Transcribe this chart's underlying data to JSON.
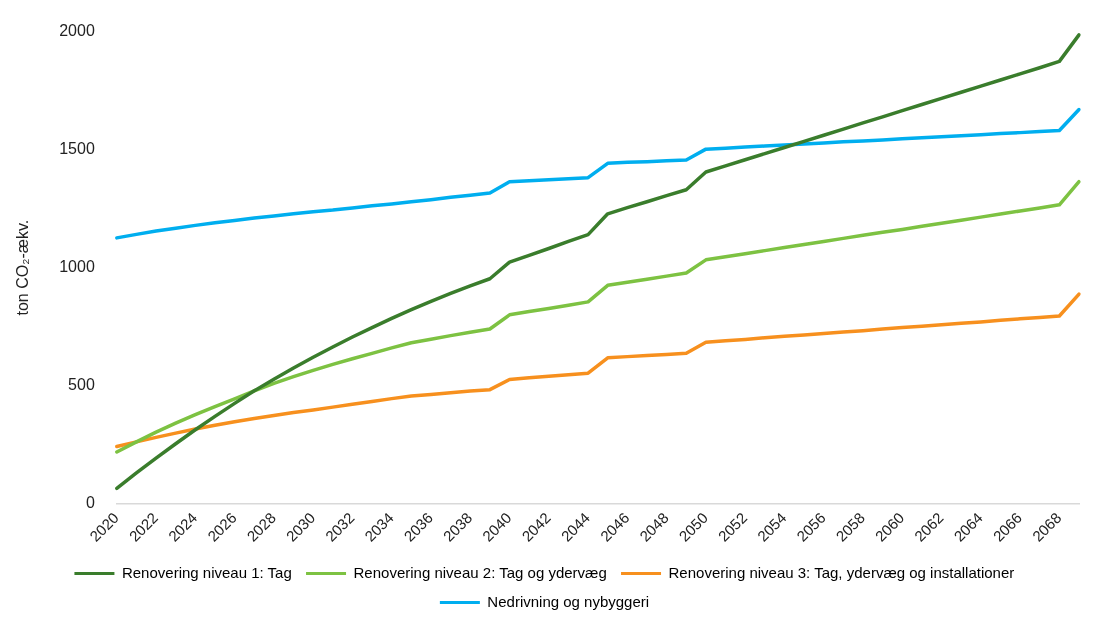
{
  "chart_data": {
    "type": "line",
    "ylabel": "ton CO₂-ækv.",
    "categories": [
      "2020",
      null,
      "2022",
      null,
      "2024",
      null,
      "2026",
      null,
      "2028",
      null,
      "2030",
      null,
      "2032",
      null,
      "2034",
      null,
      "2036",
      null,
      "2038",
      null,
      "2040",
      null,
      "2042",
      null,
      "2044",
      null,
      "2046",
      null,
      "2048",
      null,
      "2050",
      null,
      "2052",
      null,
      "2054",
      null,
      "2056",
      null,
      "2058",
      null,
      "2060",
      null,
      "2062",
      null,
      "2064",
      null,
      "2066",
      null,
      "2068",
      null
    ],
    "series": [
      {
        "name": "Renovering niveau 1: Tag",
        "color": "#3a7d2c",
        "values": [
          65,
          130,
          193,
          254,
          313,
          370,
          425,
          478,
          527,
          575,
          620,
          664,
          706,
          746,
          785,
          822,
          857,
          891,
          923,
          953,
          1023,
          1052,
          1081,
          1111,
          1140,
          1228,
          1254,
          1279,
          1305,
          1330,
          1405,
          1431,
          1457,
          1483,
          1509,
          1535,
          1561,
          1587,
          1613,
          1639,
          1665,
          1691,
          1717,
          1743,
          1769,
          1795,
          1821,
          1847,
          1874,
          1986
        ]
      },
      {
        "name": "Renovering niveau 2: Tag og ydervæg",
        "color": "#7dc242",
        "values": [
          219,
          262,
          303,
          341,
          377,
          411,
          444,
          478,
          510,
          538,
          565,
          590,
          614,
          637,
          660,
          682,
          697,
          712,
          726,
          740,
          800,
          814,
          827,
          841,
          855,
          925,
          938,
          951,
          964,
          977,
          1033,
          1046,
          1059,
          1072,
          1085,
          1098,
          1111,
          1124,
          1137,
          1150,
          1162,
          1175,
          1188,
          1201,
          1214,
          1227,
          1240,
          1253,
          1266,
          1364
        ]
      },
      {
        "name": "Renovering niveau 3: Tag, ydervæg og installationer",
        "color": "#f7901e",
        "values": [
          242,
          262,
          281,
          299,
          316,
          332,
          347,
          361,
          374,
          386,
          397,
          409,
          421,
          433,
          445,
          456,
          463,
          470,
          477,
          483,
          526,
          533,
          540,
          546,
          553,
          618,
          623,
          628,
          632,
          637,
          684,
          690,
          696,
          703,
          709,
          715,
          721,
          727,
          733,
          740,
          746,
          752,
          758,
          764,
          770,
          777,
          783,
          789,
          795,
          888
        ]
      },
      {
        "name": "Nedrivning og nybyggeri",
        "color": "#00aeef",
        "values": [
          1126,
          1141,
          1155,
          1167,
          1179,
          1190,
          1200,
          1210,
          1219,
          1228,
          1237,
          1244,
          1253,
          1262,
          1270,
          1279,
          1288,
          1298,
          1307,
          1316,
          1364,
          1368,
          1372,
          1377,
          1381,
          1442,
          1446,
          1449,
          1453,
          1456,
          1502,
          1506,
          1511,
          1515,
          1520,
          1524,
          1528,
          1533,
          1537,
          1541,
          1546,
          1550,
          1555,
          1559,
          1563,
          1568,
          1572,
          1577,
          1581,
          1670
        ]
      }
    ],
    "ylim": [
      0,
      2000
    ],
    "yticks": [
      0,
      500,
      1000,
      1500,
      2000
    ],
    "grid": false,
    "legend": "bottom",
    "marker": "none",
    "line_style": "solid"
  }
}
